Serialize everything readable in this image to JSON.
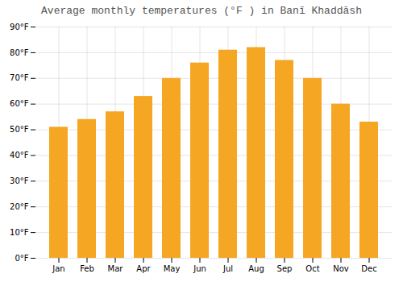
{
  "chart_data": {
    "type": "bar",
    "title": "Average monthly temperatures (°F ) in Banī Khaddāsh",
    "categories": [
      "Jan",
      "Feb",
      "Mar",
      "Apr",
      "May",
      "Jun",
      "Jul",
      "Aug",
      "Sep",
      "Oct",
      "Nov",
      "Dec"
    ],
    "values": [
      51,
      54,
      57,
      63,
      70,
      76,
      81,
      82,
      77,
      70,
      60,
      53
    ],
    "color": "#F5A623",
    "ylim": [
      0,
      90
    ],
    "yticks": [
      {
        "value": 0,
        "label": "0°F"
      },
      {
        "value": 10,
        "label": "10°F"
      },
      {
        "value": 20,
        "label": "20°F"
      },
      {
        "value": 30,
        "label": "30°F"
      },
      {
        "value": 40,
        "label": "40°F"
      },
      {
        "value": 50,
        "label": "50°F"
      },
      {
        "value": 60,
        "label": "60°F"
      },
      {
        "value": 70,
        "label": "70°F"
      },
      {
        "value": 80,
        "label": "80°F"
      },
      {
        "value": 90,
        "label": "90°F"
      }
    ],
    "grid": true
  }
}
